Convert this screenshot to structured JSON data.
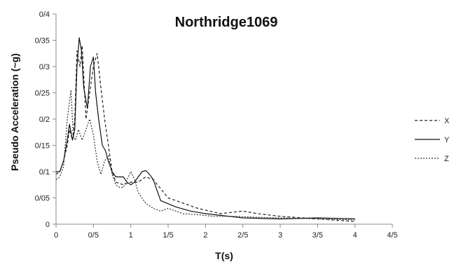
{
  "chart_data": {
    "type": "line",
    "title": "Northridge1069",
    "xlabel": "T(s)",
    "ylabel": "Pseudo Acceleration (~g)",
    "xlim": [
      0,
      4.5
    ],
    "ylim": [
      0,
      0.4
    ],
    "xticks": [
      0,
      0.5,
      1,
      1.5,
      2,
      2.5,
      3,
      3.5,
      4,
      4.5
    ],
    "xtick_labels": [
      "0",
      "0/5",
      "1",
      "1/5",
      "2",
      "2/5",
      "3",
      "3/5",
      "4",
      "4/5"
    ],
    "yticks": [
      0,
      0.05,
      0.1,
      0.15,
      0.2,
      0.25,
      0.3,
      0.35,
      0.4
    ],
    "ytick_labels": [
      "0",
      "0/05",
      "0/1",
      "0/15",
      "0/2",
      "0/25",
      "0/3",
      "0/35",
      "0/4"
    ],
    "grid": false,
    "legend_position": "right",
    "series": [
      {
        "name": "X",
        "style": "dashed",
        "color": "#222222",
        "x": [
          0,
          0.05,
          0.1,
          0.15,
          0.18,
          0.22,
          0.25,
          0.28,
          0.32,
          0.35,
          0.4,
          0.45,
          0.5,
          0.55,
          0.6,
          0.65,
          0.7,
          0.75,
          0.8,
          0.9,
          1.0,
          1.1,
          1.2,
          1.3,
          1.5,
          1.7,
          1.9,
          2.2,
          2.5,
          2.7,
          3.0,
          3.5,
          4.0
        ],
        "y": [
          0.095,
          0.1,
          0.12,
          0.15,
          0.18,
          0.16,
          0.2,
          0.33,
          0.3,
          0.34,
          0.2,
          0.25,
          0.3,
          0.325,
          0.26,
          0.2,
          0.15,
          0.1,
          0.08,
          0.075,
          0.08,
          0.08,
          0.09,
          0.085,
          0.05,
          0.04,
          0.03,
          0.02,
          0.025,
          0.02,
          0.015,
          0.01,
          0.005
        ]
      },
      {
        "name": "Y",
        "style": "solid",
        "color": "#111111",
        "x": [
          0,
          0.05,
          0.1,
          0.15,
          0.18,
          0.22,
          0.25,
          0.28,
          0.31,
          0.34,
          0.37,
          0.42,
          0.46,
          0.5,
          0.53,
          0.57,
          0.62,
          0.66,
          0.7,
          0.75,
          0.8,
          0.9,
          0.95,
          1.0,
          1.05,
          1.1,
          1.15,
          1.2,
          1.25,
          1.3,
          1.4,
          1.6,
          1.8,
          2.0,
          2.5,
          3.0,
          3.5,
          4.0
        ],
        "y": [
          0.1,
          0.1,
          0.12,
          0.16,
          0.19,
          0.16,
          0.18,
          0.3,
          0.355,
          0.33,
          0.26,
          0.22,
          0.3,
          0.318,
          0.25,
          0.2,
          0.15,
          0.14,
          0.12,
          0.1,
          0.09,
          0.09,
          0.08,
          0.075,
          0.08,
          0.09,
          0.1,
          0.102,
          0.095,
          0.085,
          0.045,
          0.033,
          0.025,
          0.02,
          0.012,
          0.01,
          0.012,
          0.01
        ]
      },
      {
        "name": "Z",
        "style": "dotted",
        "color": "#333333",
        "x": [
          0,
          0.05,
          0.1,
          0.15,
          0.2,
          0.23,
          0.26,
          0.3,
          0.35,
          0.4,
          0.45,
          0.5,
          0.55,
          0.6,
          0.65,
          0.7,
          0.75,
          0.8,
          0.85,
          0.9,
          1.0,
          1.05,
          1.1,
          1.2,
          1.3,
          1.4,
          1.5,
          1.7,
          1.9,
          2.1,
          2.4,
          2.7,
          3.0,
          3.5,
          4.0
        ],
        "y": [
          0.085,
          0.09,
          0.11,
          0.2,
          0.255,
          0.17,
          0.16,
          0.18,
          0.16,
          0.18,
          0.2,
          0.17,
          0.12,
          0.095,
          0.12,
          0.13,
          0.095,
          0.075,
          0.07,
          0.07,
          0.1,
          0.085,
          0.06,
          0.04,
          0.03,
          0.025,
          0.03,
          0.02,
          0.018,
          0.015,
          0.015,
          0.013,
          0.012,
          0.01,
          0.008
        ]
      }
    ]
  }
}
